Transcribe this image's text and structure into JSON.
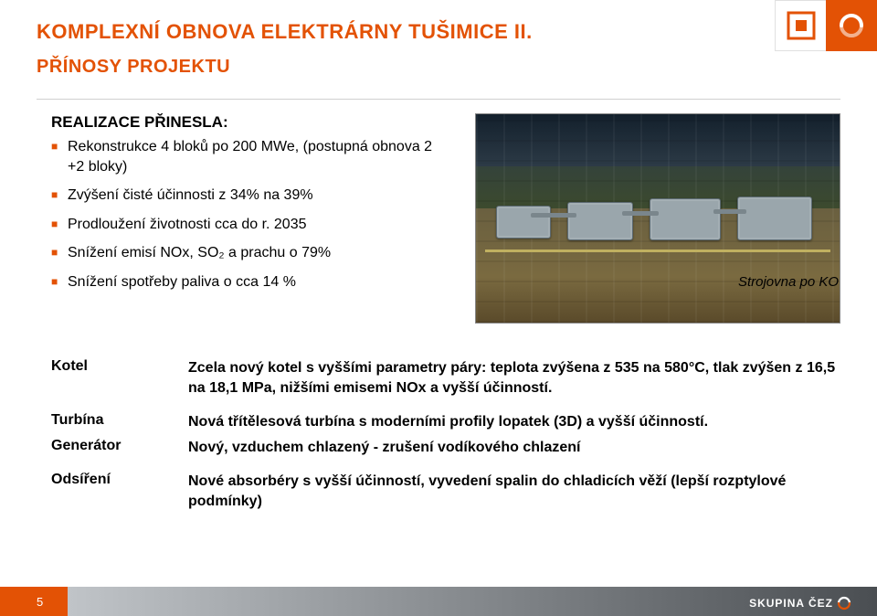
{
  "colors": {
    "accent": "#e35205",
    "title": "#e35205",
    "bullet": "#e35205",
    "text": "#000000",
    "footer_grad_from": "#c0c4c8",
    "footer_grad_to": "#4a4e52",
    "footer_text": "#ffffff"
  },
  "logo": {
    "brand": "ČEZ",
    "footer_brand": "SKUPINA ČEZ"
  },
  "header": {
    "title": "KOMPLEXNÍ OBNOVA ELEKTRÁRNY TUŠIMICE II.",
    "subtitle": "PŘÍNOSY PROJEKTU"
  },
  "content": {
    "heading": "REALIZACE PŘINESLA:",
    "bullets": [
      "Rekonstrukce 4 bloků po 200 MWe, (postupná obnova 2 +2 bloky)",
      "Zvýšení čisté účinnosti z 34% na 39%",
      "Prodloužení životnosti cca do r. 2035",
      "Snížení emisí NOx, SO₂ a prachu o 79%",
      "Snížení spotřeby paliva o cca 14 %"
    ],
    "caption": "Strojovna po KO"
  },
  "table": [
    {
      "label": "Kotel",
      "desc": "Zcela nový kotel s vyššími parametry páry: teplota zvýšena z 535 na 580°C, tlak zvýšen z 16,5 na 18,1 MPa, nižšími emisemi NOx a vyšší účinností."
    },
    {
      "label": "Turbína",
      "desc": "Nová třítělesová turbína s moderními profily lopatek (3D) a vyšší účinností."
    },
    {
      "label": "Generátor",
      "desc": "Nový, vzduchem chlazený - zrušení vodíkového chlazení"
    },
    {
      "label": "Odsíření",
      "desc": "Nové absorbéry s vyšší účinností, vyvedení spalin do chladicích věží (lepší rozptylové podmínky)"
    }
  ],
  "footer": {
    "page": "5"
  }
}
